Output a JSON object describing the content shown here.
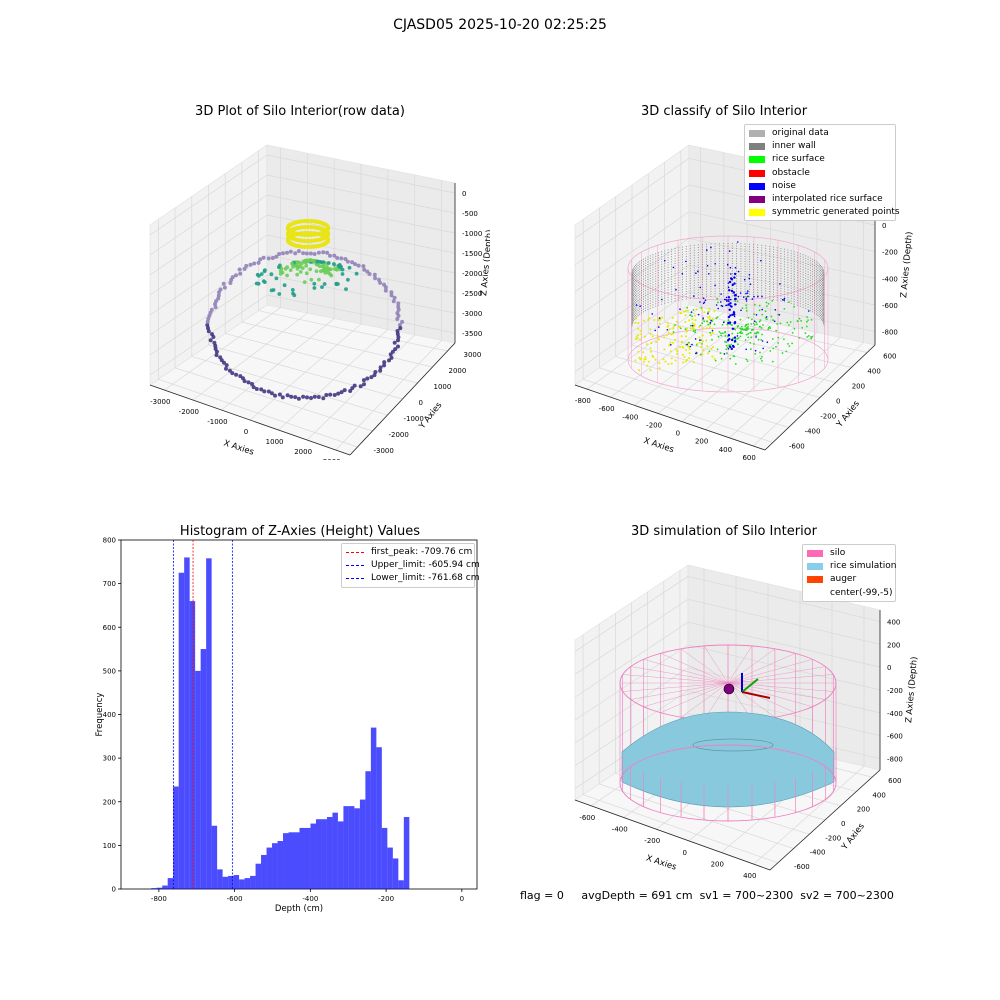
{
  "figure": {
    "suptitle": "CJASD05 2025-10-20 02:25:25",
    "footer": {
      "flag": "flag = 0",
      "avg_depth": "avgDepth = 691 cm",
      "sv1": "sv1 = 700~2300",
      "sv2": "sv2 = 700~2300"
    }
  },
  "panels": {
    "raw": {
      "title": "3D Plot of Silo Interior(row data)",
      "xlabel": "X Axies",
      "ylabel": "Y Axies",
      "zlabel": "Z Axies (Depth)",
      "xticks": [
        "-3000",
        "-2000",
        "-1000",
        "0",
        "1000",
        "2000",
        "3000"
      ],
      "yticks": [
        "3000",
        "2000",
        "1000",
        "0",
        "-1000",
        "-2000",
        "-3000"
      ],
      "zticks": [
        "0",
        "-500",
        "-1000",
        "-1500",
        "-2000",
        "-2500",
        "-3000",
        "-3500"
      ],
      "colors": {
        "high": "#f0e61a",
        "mid": "#3dbc74",
        "low": "#440154"
      }
    },
    "classify": {
      "title": "3D classify of Silo Interior",
      "xlabel": "X Axies",
      "ylabel": "Y Axies",
      "zlabel": "Z Axies (Depth)",
      "xticks": [
        "-800",
        "-600",
        "-400",
        "-200",
        "0",
        "200",
        "400",
        "600"
      ],
      "yticks": [
        "600",
        "400",
        "200",
        "0",
        "-200",
        "-400",
        "-600"
      ],
      "zticks": [
        "200",
        "0",
        "-200",
        "-400",
        "-600",
        "-800"
      ],
      "legend": [
        {
          "label": "original data",
          "color": "#b0b0b0"
        },
        {
          "label": "inner wall",
          "color": "#808080"
        },
        {
          "label": "rice surface",
          "color": "#00ff00"
        },
        {
          "label": "obstacle",
          "color": "#ff0000"
        },
        {
          "label": "noise",
          "color": "#0000ff"
        },
        {
          "label": "interpolated rice surface",
          "color": "#800080"
        },
        {
          "label": "symmetric generated points",
          "color": "#ffff00"
        }
      ]
    },
    "simulation": {
      "title": "3D simulation of Silo Interior",
      "xlabel": "X Axies",
      "ylabel": "Y Axies",
      "zlabel": "Z Axies (Depth)",
      "xticks": [
        "-600",
        "-400",
        "-200",
        "0",
        "200",
        "400"
      ],
      "yticks": [
        "600",
        "400",
        "200",
        "0",
        "-200",
        "-400",
        "-600"
      ],
      "zticks": [
        "400",
        "200",
        "0",
        "-200",
        "-400",
        "-600",
        "-800"
      ],
      "legend": [
        {
          "label": "silo",
          "color": "#ff69b4"
        },
        {
          "label": "rice simulation",
          "color": "#87ceeb"
        },
        {
          "label": "auger",
          "color": "#ff4500"
        },
        {
          "label": "center(-99,-5)",
          "color": "#ffffff"
        }
      ]
    }
  },
  "chart_data": [
    {
      "type": "scatter",
      "title": "3D Plot of Silo Interior(row data)",
      "xlabel": "X Axies",
      "ylabel": "Y Axies",
      "zlabel": "Z Axies (Depth)",
      "xlim": [
        -3500,
        3500
      ],
      "ylim": [
        -3500,
        3500
      ],
      "zlim": [
        -3700,
        200
      ],
      "grid": true
    },
    {
      "type": "scatter",
      "title": "3D classify of Silo Interior",
      "xlabel": "X Axies",
      "ylabel": "Y Axies",
      "zlabel": "Z Axies (Depth)",
      "xlim": [
        -850,
        650
      ],
      "ylim": [
        -700,
        700
      ],
      "zlim": [
        -950,
        350
      ],
      "series": [
        {
          "name": "original data"
        },
        {
          "name": "inner wall"
        },
        {
          "name": "rice surface"
        },
        {
          "name": "obstacle"
        },
        {
          "name": "noise"
        },
        {
          "name": "interpolated rice surface"
        },
        {
          "name": "symmetric generated points"
        }
      ],
      "legend": "top-right",
      "grid": true
    },
    {
      "type": "bar",
      "title": "Histogram of Z-Axies (Height) Values",
      "xlabel": "Depth (cm)",
      "ylabel": "Frequency",
      "xlim": [
        -900,
        40
      ],
      "ylim": [
        0,
        800
      ],
      "xticks": [
        "-800",
        "-600",
        "-400",
        "-200",
        "0"
      ],
      "yticks": [
        "0",
        "100",
        "200",
        "300",
        "400",
        "500",
        "600",
        "700",
        "800"
      ],
      "bin_width": 14.5,
      "bin_starts": [
        -820.2,
        -805.7,
        -791.2,
        -776.7,
        -762.2,
        -747.7,
        -733.2,
        -718.7,
        -704.2,
        -689.7,
        -675.2,
        -660.7,
        -646.2,
        -631.7,
        -617.2,
        -602.7,
        -588.2,
        -573.7,
        -559.2,
        -544.7,
        -530.2,
        -515.7,
        -501.2,
        -486.7,
        -472.2,
        -457.7,
        -443.2,
        -428.7,
        -414.2,
        -399.7,
        -385.2,
        -370.7,
        -356.2,
        -341.7,
        -327.2,
        -312.7,
        -298.2,
        -283.7,
        -269.2,
        -254.7,
        -240.2,
        -225.7,
        -211.2,
        -196.7,
        -182.2,
        -167.7,
        -153.2,
        -138.7,
        -124.2,
        -109.7,
        -95.2,
        -80.7,
        -66.2,
        -51.7,
        -37.2,
        -22.7,
        -8.2
      ],
      "values": [
        2,
        3,
        8,
        25,
        235,
        725,
        760,
        660,
        500,
        550,
        758,
        145,
        45,
        28,
        30,
        32,
        22,
        25,
        30,
        58,
        78,
        95,
        105,
        110,
        128,
        130,
        130,
        140,
        140,
        150,
        160,
        160,
        165,
        175,
        155,
        190,
        190,
        185,
        205,
        270,
        370,
        325,
        140,
        95,
        70,
        20,
        165,
        0,
        0,
        0,
        0,
        0,
        0,
        0,
        0,
        0,
        0
      ],
      "vlines": [
        {
          "label": "first_peak: -709.76 cm",
          "x": -709.76,
          "color": "#ff0000"
        },
        {
          "label": "Upper_limit: -605.94 cm",
          "x": -605.94,
          "color": "#0000ff"
        },
        {
          "label": "Lower_limit: -761.68 cm",
          "x": -761.68,
          "color": "#0000ff"
        }
      ],
      "bar_color": "#0000ff",
      "legend": "top-right",
      "grid": false
    },
    {
      "type": "scatter",
      "title": "3D simulation of Silo Interior",
      "xlabel": "X Axies",
      "ylabel": "Y Axies",
      "zlabel": "Z Axies (Depth)",
      "xlim": [
        -750,
        550
      ],
      "ylim": [
        -700,
        700
      ],
      "zlim": [
        -950,
        500
      ],
      "series": [
        {
          "name": "silo"
        },
        {
          "name": "rice simulation"
        },
        {
          "name": "auger"
        },
        {
          "name": "center(-99,-5)"
        }
      ],
      "legend": "top-right",
      "grid": true
    }
  ]
}
